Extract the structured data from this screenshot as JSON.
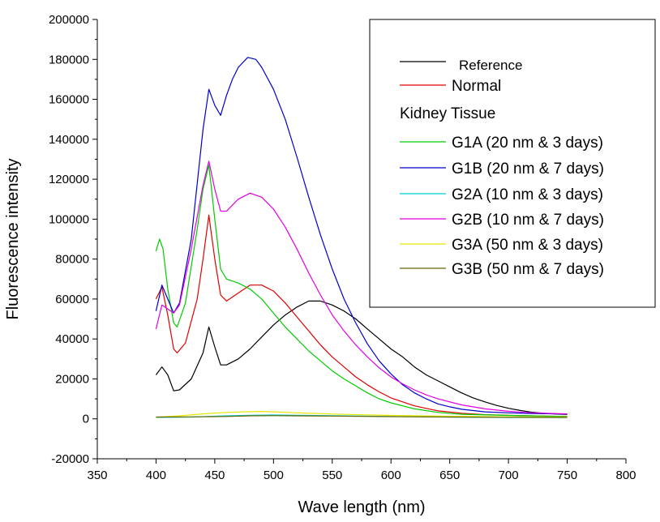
{
  "chart_data": {
    "type": "line",
    "title": "",
    "xlabel": "Wave length (nm)",
    "ylabel": "Fluorescence intensity",
    "xlim": [
      350,
      800
    ],
    "ylim": [
      -20000,
      200000
    ],
    "x_ticks": [
      350,
      400,
      450,
      500,
      550,
      600,
      650,
      700,
      750,
      800
    ],
    "y_ticks": [
      -20000,
      0,
      20000,
      40000,
      60000,
      80000,
      100000,
      120000,
      140000,
      160000,
      180000,
      200000
    ],
    "x_tick_labels": [
      "350",
      "400",
      "450",
      "500",
      "550",
      "600",
      "650",
      "700",
      "750",
      "800"
    ],
    "y_tick_labels": [
      "-20000",
      "0",
      "20000",
      "40000",
      "60000",
      "80000",
      "100000",
      "120000",
      "140000",
      "160000",
      "180000",
      "200000"
    ],
    "grid": false,
    "legend_position": "top-right",
    "legend_group_label": "Kidney Tissue",
    "series": [
      {
        "name": "Reference",
        "color": "#000000",
        "points": [
          [
            400,
            22000
          ],
          [
            405,
            26000
          ],
          [
            410,
            22000
          ],
          [
            415,
            14000
          ],
          [
            420,
            14500
          ],
          [
            430,
            20000
          ],
          [
            440,
            33000
          ],
          [
            445,
            46000
          ],
          [
            450,
            36000
          ],
          [
            455,
            27000
          ],
          [
            460,
            27000
          ],
          [
            470,
            30000
          ],
          [
            480,
            35000
          ],
          [
            490,
            41000
          ],
          [
            500,
            47000
          ],
          [
            510,
            52000
          ],
          [
            520,
            56000
          ],
          [
            530,
            59000
          ],
          [
            540,
            59000
          ],
          [
            550,
            57000
          ],
          [
            560,
            54000
          ],
          [
            570,
            50000
          ],
          [
            580,
            45000
          ],
          [
            590,
            40000
          ],
          [
            600,
            35000
          ],
          [
            610,
            31000
          ],
          [
            620,
            26000
          ],
          [
            630,
            22000
          ],
          [
            640,
            19000
          ],
          [
            650,
            16000
          ],
          [
            660,
            13000
          ],
          [
            670,
            10500
          ],
          [
            680,
            8500
          ],
          [
            690,
            6700
          ],
          [
            700,
            5300
          ],
          [
            710,
            4200
          ],
          [
            720,
            3300
          ],
          [
            730,
            2800
          ],
          [
            740,
            2400
          ],
          [
            750,
            2200
          ]
        ]
      },
      {
        "name": "Normal",
        "color": "#e00000",
        "points": [
          [
            400,
            60000
          ],
          [
            405,
            66000
          ],
          [
            410,
            52000
          ],
          [
            415,
            35000
          ],
          [
            418,
            33000
          ],
          [
            425,
            38000
          ],
          [
            435,
            60000
          ],
          [
            440,
            80000
          ],
          [
            445,
            102000
          ],
          [
            450,
            80000
          ],
          [
            455,
            62000
          ],
          [
            460,
            59000
          ],
          [
            470,
            63000
          ],
          [
            480,
            67000
          ],
          [
            490,
            67000
          ],
          [
            500,
            64000
          ],
          [
            510,
            58000
          ],
          [
            520,
            51000
          ],
          [
            530,
            44000
          ],
          [
            540,
            37000
          ],
          [
            550,
            31000
          ],
          [
            560,
            26000
          ],
          [
            570,
            21000
          ],
          [
            580,
            17000
          ],
          [
            590,
            13500
          ],
          [
            600,
            10500
          ],
          [
            620,
            6500
          ],
          [
            640,
            4000
          ],
          [
            660,
            2800
          ],
          [
            680,
            2100
          ],
          [
            700,
            1800
          ],
          [
            750,
            1200
          ]
        ]
      },
      {
        "name": "G1A (20 nm & 3 days)",
        "color": "#00cc00",
        "points": [
          [
            400,
            84000
          ],
          [
            403,
            90000
          ],
          [
            406,
            85000
          ],
          [
            410,
            65000
          ],
          [
            415,
            48000
          ],
          [
            418,
            46000
          ],
          [
            425,
            58000
          ],
          [
            435,
            95000
          ],
          [
            440,
            115000
          ],
          [
            445,
            127000
          ],
          [
            450,
            100000
          ],
          [
            455,
            75000
          ],
          [
            460,
            70000
          ],
          [
            470,
            68000
          ],
          [
            480,
            65000
          ],
          [
            490,
            60000
          ],
          [
            500,
            53000
          ],
          [
            510,
            46000
          ],
          [
            520,
            40000
          ],
          [
            530,
            34000
          ],
          [
            540,
            29000
          ],
          [
            550,
            24000
          ],
          [
            560,
            20000
          ],
          [
            570,
            16500
          ],
          [
            580,
            13000
          ],
          [
            590,
            10000
          ],
          [
            600,
            8000
          ],
          [
            620,
            5000
          ],
          [
            640,
            3200
          ],
          [
            660,
            2300
          ],
          [
            700,
            1700
          ],
          [
            750,
            1200
          ]
        ]
      },
      {
        "name": "G1B (20 nm & 7 days)",
        "color": "#0000cc",
        "points": [
          [
            400,
            54000
          ],
          [
            405,
            67000
          ],
          [
            410,
            60000
          ],
          [
            415,
            53000
          ],
          [
            420,
            58000
          ],
          [
            430,
            90000
          ],
          [
            440,
            145000
          ],
          [
            445,
            165000
          ],
          [
            450,
            157000
          ],
          [
            455,
            152000
          ],
          [
            460,
            162000
          ],
          [
            465,
            170000
          ],
          [
            470,
            176000
          ],
          [
            478,
            181000
          ],
          [
            485,
            180000
          ],
          [
            490,
            176000
          ],
          [
            500,
            165000
          ],
          [
            510,
            150000
          ],
          [
            520,
            131000
          ],
          [
            530,
            111000
          ],
          [
            540,
            92000
          ],
          [
            550,
            75000
          ],
          [
            560,
            60000
          ],
          [
            570,
            48000
          ],
          [
            580,
            37500
          ],
          [
            590,
            29000
          ],
          [
            600,
            22500
          ],
          [
            610,
            17000
          ],
          [
            620,
            13000
          ],
          [
            630,
            10000
          ],
          [
            640,
            7500
          ],
          [
            650,
            6000
          ],
          [
            660,
            4800
          ],
          [
            680,
            3500
          ],
          [
            700,
            3000
          ],
          [
            720,
            2700
          ],
          [
            750,
            2400
          ]
        ]
      },
      {
        "name": "G2A (10 nm & 3 days)",
        "color": "#00cccc",
        "points": [
          [
            400,
            700
          ],
          [
            430,
            900
          ],
          [
            460,
            1500
          ],
          [
            480,
            1800
          ],
          [
            500,
            1900
          ],
          [
            520,
            1800
          ],
          [
            550,
            1600
          ],
          [
            600,
            1200
          ],
          [
            650,
            900
          ],
          [
            700,
            700
          ],
          [
            750,
            600
          ]
        ]
      },
      {
        "name": "G2B (10 nm & 7 days)",
        "color": "#e000e0",
        "points": [
          [
            400,
            45000
          ],
          [
            405,
            57000
          ],
          [
            410,
            55000
          ],
          [
            415,
            53000
          ],
          [
            420,
            57000
          ],
          [
            430,
            85000
          ],
          [
            440,
            117000
          ],
          [
            445,
            129000
          ],
          [
            450,
            115000
          ],
          [
            455,
            104000
          ],
          [
            460,
            104000
          ],
          [
            470,
            110000
          ],
          [
            480,
            113000
          ],
          [
            490,
            111000
          ],
          [
            500,
            105000
          ],
          [
            510,
            96000
          ],
          [
            520,
            85000
          ],
          [
            530,
            73000
          ],
          [
            540,
            62000
          ],
          [
            550,
            52000
          ],
          [
            560,
            44000
          ],
          [
            570,
            37000
          ],
          [
            580,
            31000
          ],
          [
            590,
            25500
          ],
          [
            600,
            21000
          ],
          [
            610,
            17500
          ],
          [
            620,
            14500
          ],
          [
            630,
            12000
          ],
          [
            640,
            10000
          ],
          [
            660,
            7000
          ],
          [
            680,
            5000
          ],
          [
            700,
            3800
          ],
          [
            720,
            3000
          ],
          [
            750,
            2500
          ]
        ]
      },
      {
        "name": "G3A (50 nm & 3 days)",
        "color": "#e6e600",
        "points": [
          [
            400,
            800
          ],
          [
            420,
            1500
          ],
          [
            440,
            2500
          ],
          [
            460,
            3200
          ],
          [
            480,
            3600
          ],
          [
            490,
            3700
          ],
          [
            500,
            3500
          ],
          [
            520,
            3000
          ],
          [
            550,
            2400
          ],
          [
            600,
            1700
          ],
          [
            650,
            1300
          ],
          [
            700,
            1000
          ],
          [
            750,
            900
          ]
        ]
      },
      {
        "name": "G3B (50 nm & 7 days)",
        "color": "#666600",
        "points": [
          [
            400,
            900
          ],
          [
            430,
            1000
          ],
          [
            460,
            1200
          ],
          [
            480,
            1500
          ],
          [
            500,
            1600
          ],
          [
            520,
            1500
          ],
          [
            550,
            1400
          ],
          [
            600,
            1100
          ],
          [
            650,
            900
          ],
          [
            700,
            800
          ],
          [
            750,
            700
          ]
        ]
      }
    ]
  }
}
